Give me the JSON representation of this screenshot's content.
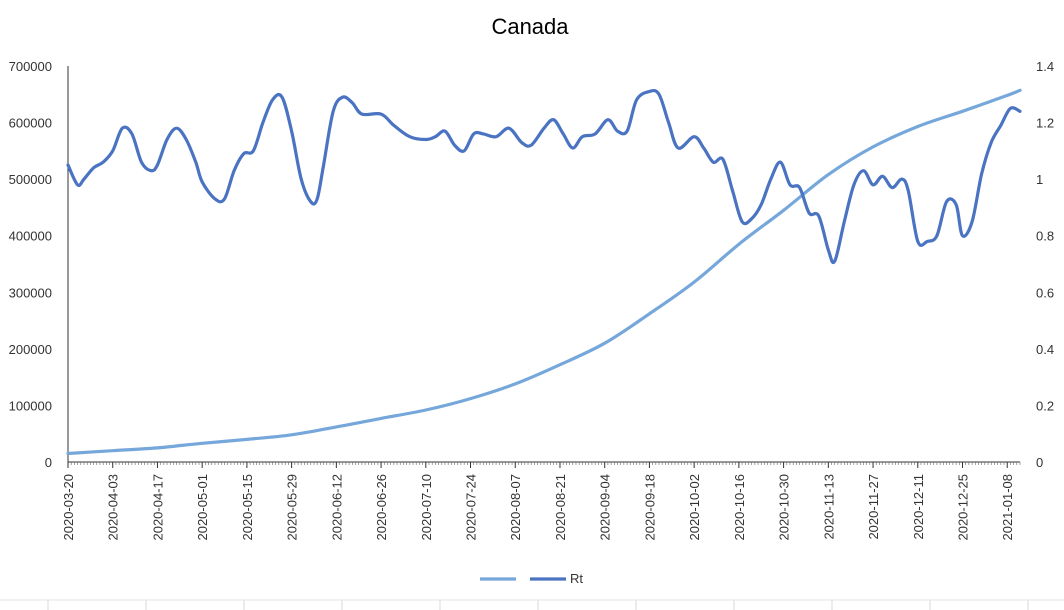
{
  "chart_data": {
    "type": "line",
    "title": "Canada",
    "x_ticks": [
      "2020-03-20",
      "2020-04-03",
      "2020-04-17",
      "2020-05-01",
      "2020-05-15",
      "2020-05-29",
      "2020-06-12",
      "2020-06-26",
      "2020-07-10",
      "2020-07-24",
      "2020-08-07",
      "2020-08-21",
      "2020-09-04",
      "2020-09-18",
      "2020-10-02",
      "2020-10-16",
      "2020-10-30",
      "2020-11-13",
      "2020-11-27",
      "2020-12-11",
      "2020-12-25",
      "2021-01-08"
    ],
    "x_range": [
      "2020-03-20",
      "2021-01-12"
    ],
    "y_left": {
      "range": [
        0,
        700000
      ],
      "ticks": [
        "0",
        "100000",
        "200000",
        "300000",
        "400000",
        "500000",
        "600000",
        "700000"
      ]
    },
    "y_right": {
      "range": [
        0,
        1.4
      ],
      "ticks": [
        "0",
        "0.2",
        "0.4",
        "0.6",
        "0.8",
        "1",
        "1.2",
        "1.4"
      ]
    },
    "grid": false,
    "legend_position": "bottom",
    "series": [
      {
        "name": "",
        "axis": "left",
        "color": "#76A7DB",
        "points": [
          [
            "2020-03-20",
            15000
          ],
          [
            "2020-04-03",
            20000
          ],
          [
            "2020-04-17",
            25000
          ],
          [
            "2020-05-01",
            33000
          ],
          [
            "2020-05-15",
            40000
          ],
          [
            "2020-05-29",
            48000
          ],
          [
            "2020-06-12",
            62000
          ],
          [
            "2020-06-26",
            77000
          ],
          [
            "2020-07-10",
            92000
          ],
          [
            "2020-07-24",
            112000
          ],
          [
            "2020-08-07",
            138000
          ],
          [
            "2020-08-21",
            172000
          ],
          [
            "2020-09-04",
            210000
          ],
          [
            "2020-09-18",
            262000
          ],
          [
            "2020-10-02",
            318000
          ],
          [
            "2020-10-16",
            385000
          ],
          [
            "2020-10-30",
            445000
          ],
          [
            "2020-11-13",
            508000
          ],
          [
            "2020-11-27",
            557000
          ],
          [
            "2020-12-11",
            593000
          ],
          [
            "2020-12-25",
            620000
          ],
          [
            "2021-01-08",
            648000
          ],
          [
            "2021-01-12",
            657000
          ]
        ]
      },
      {
        "name": "Rt",
        "axis": "right",
        "color": "#4A73C2",
        "points": [
          [
            "2020-03-20",
            1.05
          ],
          [
            "2020-03-23",
            0.98
          ],
          [
            "2020-03-25",
            1.0
          ],
          [
            "2020-03-28",
            1.04
          ],
          [
            "2020-03-31",
            1.06
          ],
          [
            "2020-04-03",
            1.1
          ],
          [
            "2020-04-06",
            1.18
          ],
          [
            "2020-04-09",
            1.16
          ],
          [
            "2020-04-12",
            1.06
          ],
          [
            "2020-04-15",
            1.03
          ],
          [
            "2020-04-17",
            1.05
          ],
          [
            "2020-04-20",
            1.14
          ],
          [
            "2020-04-23",
            1.18
          ],
          [
            "2020-04-26",
            1.14
          ],
          [
            "2020-04-29",
            1.06
          ],
          [
            "2020-05-01",
            0.99
          ],
          [
            "2020-05-05",
            0.93
          ],
          [
            "2020-05-08",
            0.93
          ],
          [
            "2020-05-11",
            1.03
          ],
          [
            "2020-05-14",
            1.09
          ],
          [
            "2020-05-17",
            1.1
          ],
          [
            "2020-05-20",
            1.2
          ],
          [
            "2020-05-23",
            1.28
          ],
          [
            "2020-05-26",
            1.29
          ],
          [
            "2020-05-29",
            1.17
          ],
          [
            "2020-06-01",
            1.0
          ],
          [
            "2020-06-04",
            0.92
          ],
          [
            "2020-06-06",
            0.93
          ],
          [
            "2020-06-08",
            1.05
          ],
          [
            "2020-06-11",
            1.24
          ],
          [
            "2020-06-14",
            1.29
          ],
          [
            "2020-06-17",
            1.27
          ],
          [
            "2020-06-20",
            1.23
          ],
          [
            "2020-06-26",
            1.23
          ],
          [
            "2020-06-30",
            1.19
          ],
          [
            "2020-07-05",
            1.15
          ],
          [
            "2020-07-10",
            1.14
          ],
          [
            "2020-07-13",
            1.15
          ],
          [
            "2020-07-16",
            1.17
          ],
          [
            "2020-07-19",
            1.12
          ],
          [
            "2020-07-22",
            1.1
          ],
          [
            "2020-07-25",
            1.16
          ],
          [
            "2020-07-28",
            1.16
          ],
          [
            "2020-08-01",
            1.15
          ],
          [
            "2020-08-05",
            1.18
          ],
          [
            "2020-08-09",
            1.13
          ],
          [
            "2020-08-12",
            1.12
          ],
          [
            "2020-08-16",
            1.18
          ],
          [
            "2020-08-19",
            1.21
          ],
          [
            "2020-08-22",
            1.16
          ],
          [
            "2020-08-25",
            1.11
          ],
          [
            "2020-08-28",
            1.15
          ],
          [
            "2020-09-01",
            1.16
          ],
          [
            "2020-09-05",
            1.21
          ],
          [
            "2020-09-08",
            1.17
          ],
          [
            "2020-09-11",
            1.17
          ],
          [
            "2020-09-14",
            1.28
          ],
          [
            "2020-09-18",
            1.31
          ],
          [
            "2020-09-21",
            1.3
          ],
          [
            "2020-09-24",
            1.2
          ],
          [
            "2020-09-27",
            1.11
          ],
          [
            "2020-10-02",
            1.15
          ],
          [
            "2020-10-05",
            1.11
          ],
          [
            "2020-10-08",
            1.06
          ],
          [
            "2020-10-11",
            1.07
          ],
          [
            "2020-10-14",
            0.96
          ],
          [
            "2020-10-17",
            0.85
          ],
          [
            "2020-10-20",
            0.86
          ],
          [
            "2020-10-23",
            0.91
          ],
          [
            "2020-10-26",
            1.0
          ],
          [
            "2020-10-29",
            1.06
          ],
          [
            "2020-11-01",
            0.98
          ],
          [
            "2020-11-04",
            0.97
          ],
          [
            "2020-11-07",
            0.88
          ],
          [
            "2020-11-10",
            0.87
          ],
          [
            "2020-11-13",
            0.75
          ],
          [
            "2020-11-15",
            0.71
          ],
          [
            "2020-11-18",
            0.85
          ],
          [
            "2020-11-21",
            0.98
          ],
          [
            "2020-11-24",
            1.03
          ],
          [
            "2020-11-27",
            0.98
          ],
          [
            "2020-11-30",
            1.01
          ],
          [
            "2020-12-03",
            0.97
          ],
          [
            "2020-12-06",
            1.0
          ],
          [
            "2020-12-08",
            0.96
          ],
          [
            "2020-12-11",
            0.78
          ],
          [
            "2020-12-14",
            0.78
          ],
          [
            "2020-12-17",
            0.8
          ],
          [
            "2020-12-20",
            0.92
          ],
          [
            "2020-12-23",
            0.91
          ],
          [
            "2020-12-25",
            0.8
          ],
          [
            "2020-12-28",
            0.85
          ],
          [
            "2020-12-31",
            1.02
          ],
          [
            "2021-01-03",
            1.13
          ],
          [
            "2021-01-06",
            1.19
          ],
          [
            "2021-01-09",
            1.25
          ],
          [
            "2021-01-12",
            1.24
          ]
        ]
      }
    ],
    "legend": [
      "",
      "Rt"
    ]
  }
}
